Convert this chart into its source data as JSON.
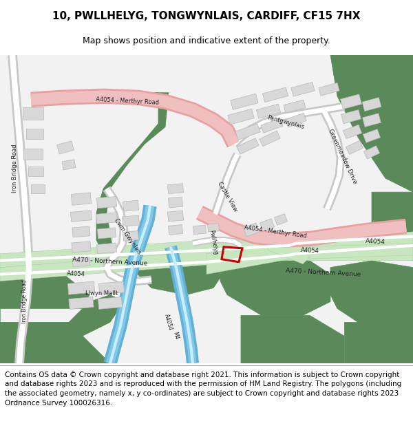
{
  "title": "10, PWLLHELYG, TONGWYNLAIS, CARDIFF, CF15 7HX",
  "subtitle": "Map shows position and indicative extent of the property.",
  "footer": "Contains OS data © Crown copyright and database right 2021. This information is subject to Crown copyright and database rights 2023 and is reproduced with the permission of HM Land Registry. The polygons (including the associated geometry, namely x, y co-ordinates) are subject to Crown copyright and database rights 2023 Ordnance Survey 100026316.",
  "title_fontsize": 11,
  "subtitle_fontsize": 9,
  "footer_fontsize": 7.5,
  "bg_color": "#ffffff",
  "map_bg": "#f2f2f2",
  "green_dark": "#5a8a5a",
  "green_light": "#c8e6c0",
  "green_mid": "#8fbb8f",
  "road_pink": "#f0c0c0",
  "road_pink_edge": "#e8a0a0",
  "road_white": "#ffffff",
  "road_green_light": "#d0ecd0",
  "road_green_edge": "#a0cca0",
  "blue": "#80c8e8",
  "blue2": "#60b0d8",
  "building_color": "#d8d8d8",
  "building_stroke": "#b8b8b8",
  "red_outline": "#cc0000",
  "text_color": "#222222"
}
